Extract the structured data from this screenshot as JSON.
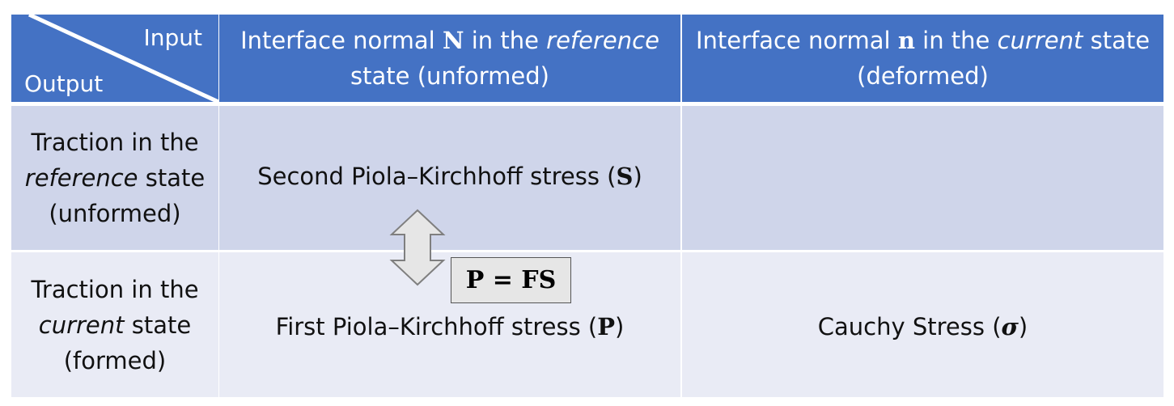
{
  "corner": {
    "input_label": "Input",
    "output_label": "Output"
  },
  "columns": [
    {
      "prefix": "Interface normal ",
      "symbol": "N",
      "middle": " in the ",
      "emphasis": "reference",
      "suffix": " state (unformed)"
    },
    {
      "prefix": "Interface normal ",
      "symbol": "n",
      "middle": " in the ",
      "emphasis": "current",
      "suffix": " state (deformed)"
    }
  ],
  "rows": [
    {
      "label_line1": "Traction in the",
      "label_emphasis": "reference",
      "label_line2_suffix": " state",
      "label_line3": "(unformed)",
      "cells": [
        {
          "text": "Second Piola–Kirchhoff stress (",
          "symbol": "S",
          "close": ")"
        },
        {
          "text": "",
          "symbol": "",
          "close": ""
        }
      ]
    },
    {
      "label_line1": "Traction in the",
      "label_emphasis": "current",
      "label_line2_suffix": " state",
      "label_line3": "(formed)",
      "cells": [
        {
          "text": "First Piola–Kirchhoff stress (",
          "symbol": "P",
          "close": ")"
        },
        {
          "text": "Cauchy Stress (",
          "symbol": "σ",
          "close": ")"
        }
      ]
    }
  ],
  "relation": {
    "formula": "P = FS"
  },
  "colors": {
    "header": "#4472c4",
    "row1": "#cfd5ea",
    "row2": "#e9ebf5",
    "arrow_fill": "#e6e6e6",
    "arrow_stroke": "#7f7f7f"
  }
}
